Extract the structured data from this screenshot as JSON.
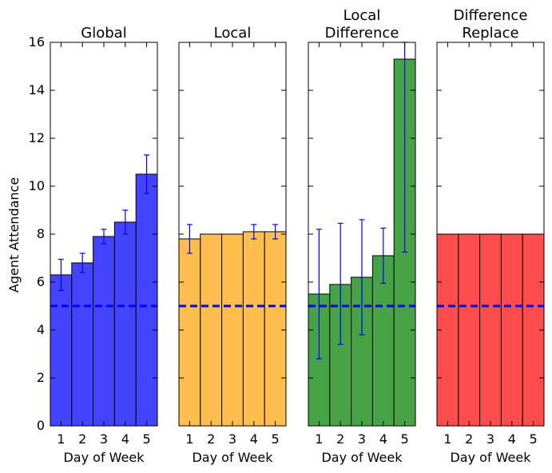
{
  "figure": {
    "ylabel": "Agent Attendance",
    "xlabel": "Day of Week"
  },
  "chart_data": [
    {
      "type": "bar",
      "title": "Global",
      "categories": [
        "1",
        "2",
        "3",
        "4",
        "5"
      ],
      "values": [
        6.3,
        6.8,
        7.9,
        8.5,
        10.5
      ],
      "errors": [
        [
          5.65,
          6.95
        ],
        [
          6.4,
          7.2
        ],
        [
          7.6,
          8.2
        ],
        [
          8.0,
          9.0
        ],
        [
          9.7,
          11.3
        ]
      ],
      "reference_line": 5,
      "color": "#4444ff",
      "error_color": "#0000ff",
      "ylim": [
        0,
        16
      ],
      "xlabel": "Day of Week",
      "ylabel": "Agent Attendance"
    },
    {
      "type": "bar",
      "title": "Local",
      "categories": [
        "1",
        "2",
        "3",
        "4",
        "5"
      ],
      "values": [
        7.8,
        8.0,
        8.0,
        8.1,
        8.1
      ],
      "errors": [
        [
          7.2,
          8.4
        ],
        null,
        null,
        [
          7.8,
          8.4
        ],
        [
          7.8,
          8.4
        ]
      ],
      "reference_line": 5,
      "color": "#ffbe4d",
      "error_color": "#0000ff",
      "ylim": [
        0,
        16
      ],
      "xlabel": "Day of Week"
    },
    {
      "type": "bar",
      "title": "Local\nDifference",
      "categories": [
        "1",
        "2",
        "3",
        "4",
        "5"
      ],
      "values": [
        5.5,
        5.9,
        6.2,
        7.1,
        15.3
      ],
      "errors": [
        [
          2.8,
          8.2
        ],
        [
          3.4,
          8.45
        ],
        [
          3.8,
          8.6
        ],
        [
          5.95,
          8.25
        ],
        [
          7.25,
          16.0
        ]
      ],
      "reference_line": 5,
      "color": "#46a346",
      "error_color": "#0000ff",
      "ylim": [
        0,
        16
      ],
      "xlabel": "Day of Week"
    },
    {
      "type": "bar",
      "title": "Difference\nReplace",
      "categories": [
        "1",
        "2",
        "3",
        "4",
        "5"
      ],
      "values": [
        8.0,
        8.0,
        8.0,
        8.0,
        8.0
      ],
      "errors": [
        null,
        null,
        null,
        null,
        null
      ],
      "reference_line": 5,
      "color": "#ff4c4c",
      "error_color": "#0000ff",
      "ylim": [
        0,
        16
      ],
      "xlabel": "Day of Week"
    }
  ],
  "y_ticks": [
    "0",
    "2",
    "4",
    "6",
    "8",
    "10",
    "12",
    "14",
    "16"
  ]
}
